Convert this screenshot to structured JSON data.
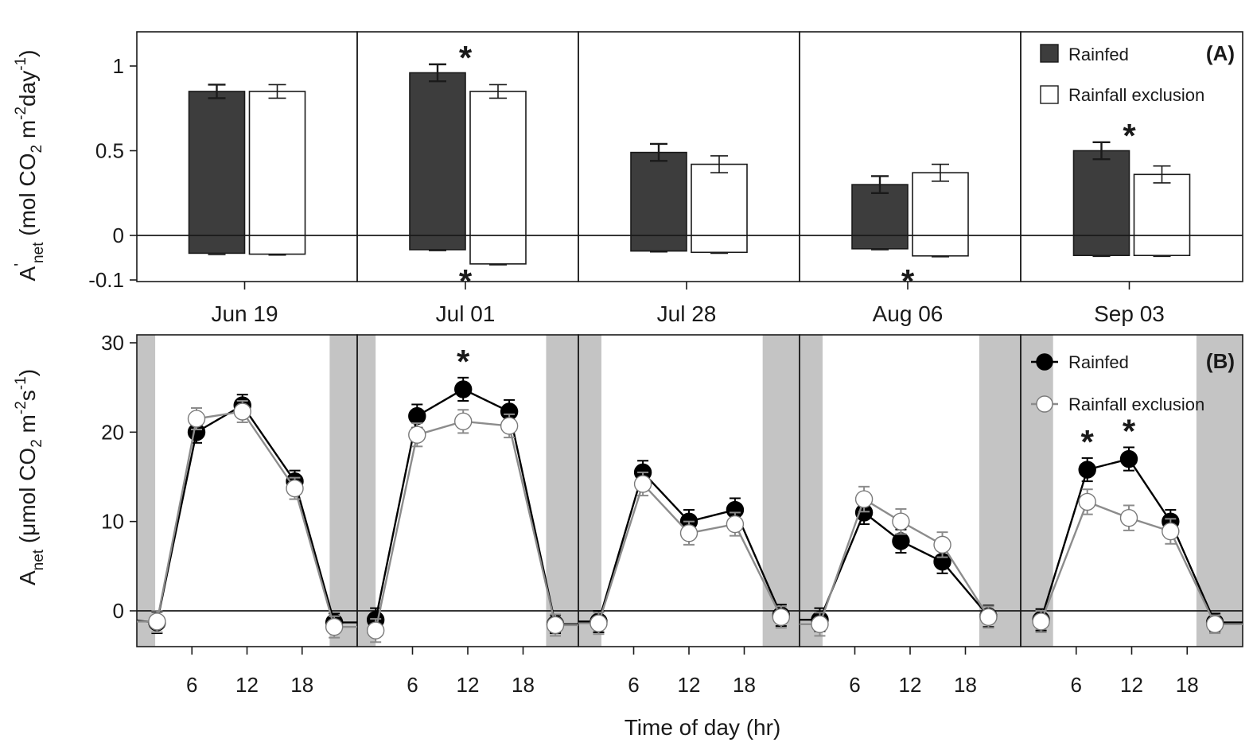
{
  "chart_data": [
    {
      "panel": "(A)",
      "type": "bar",
      "ylabel": {
        "symbol": "A",
        "prime": "'",
        "sub": "net",
        "unit_a": "(mol CO",
        "unit_sub": "2",
        "unit_b": " m",
        "unit_sup1": "-2",
        "unit_c": "day",
        "unit_sup2": "-1",
        "unit_d": ")"
      },
      "ylim_top": [
        0,
        1.25
      ],
      "ylim_bottom": [
        -0.1,
        0
      ],
      "yticks_top": [
        {
          "value": 0,
          "label": "0"
        },
        {
          "value": 0.5,
          "label": "0.5"
        },
        {
          "value": 1,
          "label": "1"
        }
      ],
      "yticks_bottom": [
        {
          "value": -0.1,
          "label": "-0.1"
        }
      ],
      "dates": [
        "Jun 19",
        "Jul 01",
        "Jul 28",
        "Aug 06",
        "Sep 03"
      ],
      "series": [
        {
          "name": "Rainfed",
          "color": "#3d3d3d",
          "positive": [
            0.85,
            0.96,
            0.49,
            0.3,
            0.5
          ],
          "positive_err": [
            0.04,
            0.05,
            0.05,
            0.05,
            0.05
          ],
          "negative": [
            -0.04,
            -0.032,
            -0.035,
            -0.03,
            -0.045
          ],
          "negative_err": [
            0.003,
            0.002,
            0.002,
            0.002,
            0.002
          ]
        },
        {
          "name": "Rainfall exclusion",
          "color": "#ffffff",
          "positive": [
            0.85,
            0.85,
            0.42,
            0.37,
            0.36
          ],
          "positive_err": [
            0.04,
            0.04,
            0.05,
            0.05,
            0.05
          ],
          "negative": [
            -0.042,
            -0.064,
            -0.038,
            -0.046,
            -0.045
          ],
          "negative_err": [
            0.002,
            0.002,
            0.002,
            0.002,
            0.002
          ]
        }
      ],
      "significance": [
        {
          "date_index": 1,
          "part": "positive",
          "symbol": "*"
        },
        {
          "date_index": 1,
          "part": "negative",
          "symbol": "*"
        },
        {
          "date_index": 3,
          "part": "negative",
          "symbol": "*"
        },
        {
          "date_index": 4,
          "part": "positive",
          "symbol": "*"
        }
      ]
    },
    {
      "panel": "(B)",
      "type": "line",
      "ylabel": {
        "symbol": "A",
        "sub": "net",
        "unit_a": "(μmol CO",
        "unit_sub": "2",
        "unit_b": " m",
        "unit_sup1": "-2",
        "unit_c": "s",
        "unit_sup2": "-1",
        "unit_d": ")"
      },
      "xlabel": "Time of day (hr)",
      "xlim": [
        0,
        24
      ],
      "ylim": [
        -4,
        31
      ],
      "xticks": [
        {
          "value": 6,
          "label": "6"
        },
        {
          "value": 12,
          "label": "12"
        },
        {
          "value": 18,
          "label": "18"
        }
      ],
      "yticks": [
        {
          "value": 0,
          "label": "0"
        },
        {
          "value": 10,
          "label": "10"
        },
        {
          "value": 20,
          "label": "20"
        },
        {
          "value": 30,
          "label": "30"
        }
      ],
      "dark_periods": [
        [
          [
            0,
            2
          ],
          [
            21,
            24
          ]
        ],
        [
          [
            0,
            2
          ],
          [
            20.5,
            24
          ]
        ],
        [
          [
            0,
            2.5
          ],
          [
            20,
            24
          ]
        ],
        [
          [
            0,
            2.5
          ],
          [
            19.5,
            24
          ]
        ],
        [
          [
            0,
            3.5
          ],
          [
            19,
            24
          ]
        ]
      ],
      "series": [
        {
          "name": "Rainfed",
          "color": "#000000",
          "marker_fill": "#000000",
          "days": [
            {
              "x": [
                -1,
                2.2,
                6.5,
                11.5,
                17.2,
                21.5,
                25
              ],
              "y": [
                -1,
                -1.3,
                20,
                23,
                14.5,
                -1.3,
                -1.3
              ],
              "err": [
                0,
                1.2,
                1.2,
                1.2,
                1.2,
                1.0,
                0
              ]
            },
            {
              "x": [
                2.0,
                6.5,
                11.5,
                16.5,
                21.5,
                25
              ],
              "y": [
                -1,
                21.8,
                24.8,
                22.3,
                -1.5,
                -1.5
              ],
              "err": [
                1.3,
                1.3,
                1.3,
                1.3,
                1.0,
                0
              ]
            },
            {
              "x": [
                -1,
                2.2,
                7.0,
                12.0,
                17.0,
                22.0
              ],
              "y": [
                -1.2,
                -1.2,
                15.5,
                10,
                11.3,
                -0.5
              ],
              "err": [
                0,
                1.2,
                1.3,
                1.3,
                1.3,
                1.2
              ]
            },
            {
              "x": [
                -1,
                2.2,
                7.0,
                11.0,
                15.5,
                20.5
              ],
              "y": [
                -1.0,
                -1.0,
                11.0,
                7.8,
                5.5,
                -0.6
              ],
              "err": [
                0,
                1.3,
                1.3,
                1.3,
                1.3,
                1.2
              ]
            },
            {
              "x": [
                2.2,
                7.2,
                11.7,
                16.2,
                21.0,
                25
              ],
              "y": [
                -1.0,
                15.8,
                17.0,
                10.0,
                -1.3,
                -1.3
              ],
              "err": [
                1.2,
                1.3,
                1.3,
                1.3,
                1.0,
                0
              ]
            }
          ]
        },
        {
          "name": "Rainfall exclusion",
          "color": "#8c8c8c",
          "marker_fill": "#ffffff",
          "days": [
            {
              "x": [
                -1,
                2.2,
                6.5,
                11.5,
                17.2,
                21.5,
                25
              ],
              "y": [
                -1.2,
                -1.2,
                21.5,
                22.3,
                13.7,
                -1.8,
                -1.8
              ],
              "err": [
                0,
                1.2,
                1.2,
                1.2,
                1.2,
                1.2,
                0
              ]
            },
            {
              "x": [
                2.0,
                6.5,
                11.5,
                16.5,
                21.5,
                25
              ],
              "y": [
                -2.2,
                19.7,
                21.2,
                20.7,
                -1.6,
                -1.6
              ],
              "err": [
                1.3,
                1.3,
                1.3,
                1.3,
                1.2,
                0
              ]
            },
            {
              "x": [
                -1,
                2.2,
                7.0,
                12.0,
                17.0,
                22.0
              ],
              "y": [
                -1.4,
                -1.4,
                14.2,
                8.7,
                9.7,
                -0.7
              ],
              "err": [
                0,
                1.2,
                1.3,
                1.3,
                1.3,
                1.2
              ]
            },
            {
              "x": [
                -1,
                2.2,
                7.0,
                11.0,
                15.5,
                20.5
              ],
              "y": [
                -1.5,
                -1.5,
                12.5,
                10.0,
                7.4,
                -0.7
              ],
              "err": [
                0,
                1.3,
                1.4,
                1.4,
                1.4,
                1.2
              ]
            },
            {
              "x": [
                2.2,
                7.2,
                11.7,
                16.2,
                21.0,
                25
              ],
              "y": [
                -1.2,
                12.2,
                10.4,
                8.9,
                -1.5,
                -1.5
              ],
              "err": [
                1.2,
                1.4,
                1.4,
                1.4,
                1.0,
                0
              ]
            }
          ]
        }
      ],
      "significance": [
        {
          "day_index": 1,
          "x": 11.5,
          "symbol": "*"
        },
        {
          "day_index": 4,
          "x": 7.2,
          "symbol": "*"
        },
        {
          "day_index": 4,
          "x": 11.7,
          "symbol": "*"
        }
      ]
    }
  ]
}
